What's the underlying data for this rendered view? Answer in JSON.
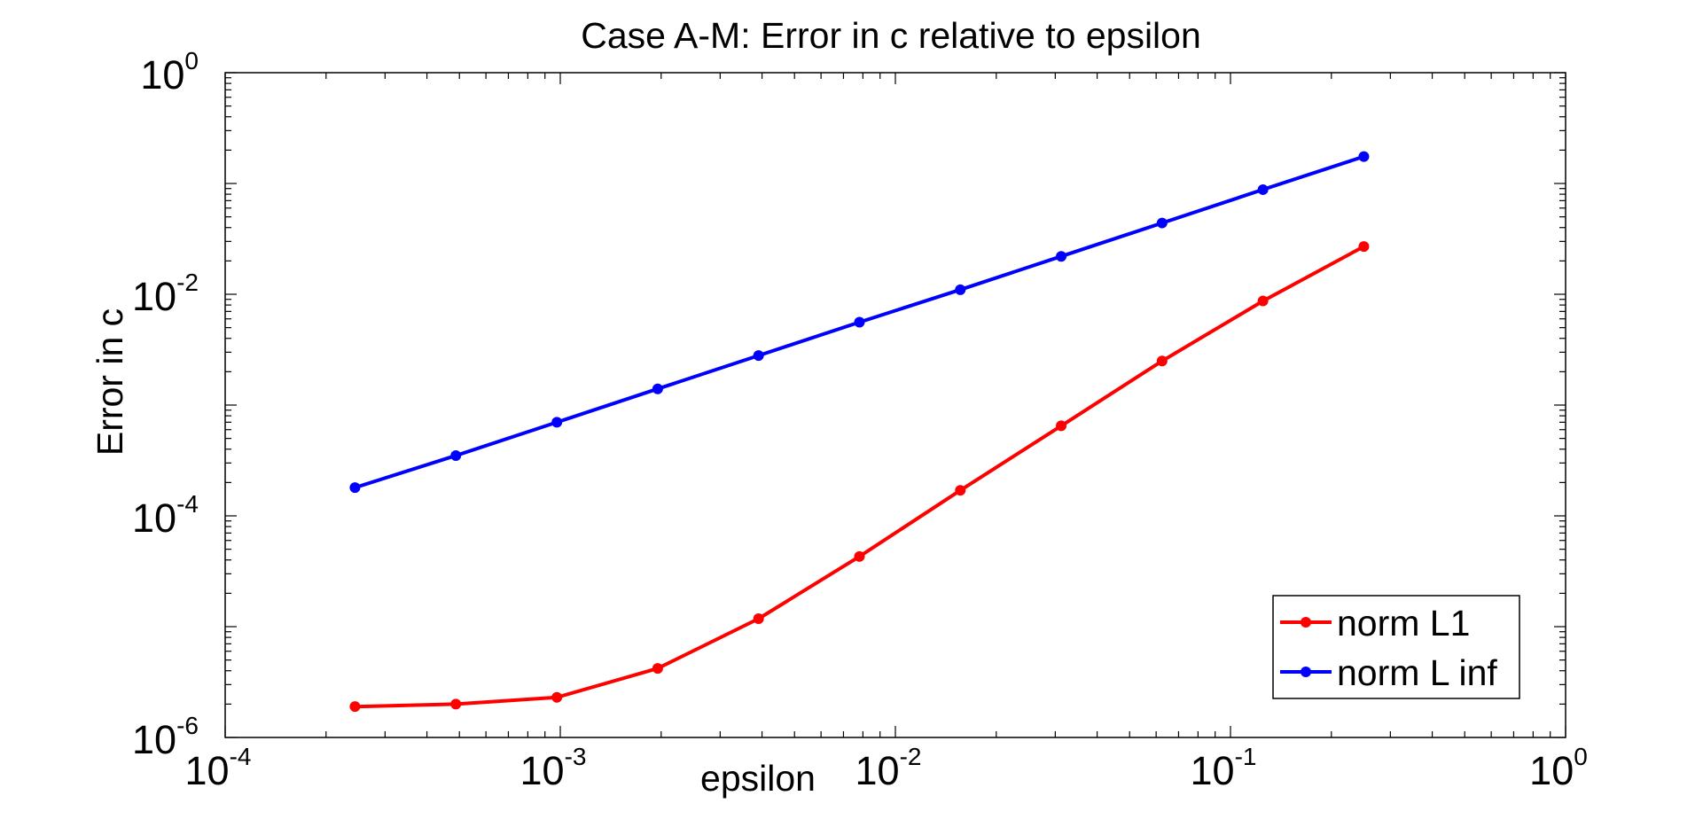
{
  "chart_data": {
    "type": "line",
    "title": "Case A-M: Error in c relative to epsilon",
    "xlabel": "epsilon",
    "ylabel": "Error in c",
    "x_scale": "log",
    "y_scale": "log",
    "xlim": [
      0.0001,
      1
    ],
    "ylim": [
      1e-06,
      1
    ],
    "grid": false,
    "legend_position": "bottom-right",
    "x_ticks": [
      {
        "value": 0.0001,
        "base": "10",
        "exp": "-4"
      },
      {
        "value": 0.001,
        "base": "10",
        "exp": "-3"
      },
      {
        "value": 0.01,
        "base": "10",
        "exp": "-2"
      },
      {
        "value": 0.1,
        "base": "10",
        "exp": "-1"
      },
      {
        "value": 1,
        "base": "10",
        "exp": "0"
      }
    ],
    "y_ticks": [
      {
        "value": 1,
        "base": "10",
        "exp": "0"
      },
      {
        "value": 0.01,
        "base": "10",
        "exp": "-2"
      },
      {
        "value": 0.0001,
        "base": "10",
        "exp": "-4"
      },
      {
        "value": 1e-06,
        "base": "10",
        "exp": "-6"
      }
    ],
    "x": [
      0.000244,
      0.000488,
      0.000977,
      0.001953,
      0.003906,
      0.007813,
      0.015625,
      0.03125,
      0.0625,
      0.125,
      0.25
    ],
    "series": [
      {
        "name": "norm L1",
        "color": "#ff0000",
        "values": [
          1.9e-06,
          2e-06,
          2.3e-06,
          4.2e-06,
          1.18e-05,
          4.3e-05,
          0.00017,
          0.00065,
          0.0025,
          0.0087,
          0.027
        ]
      },
      {
        "name": "norm L inf",
        "color": "#0000ff",
        "values": [
          0.00018,
          0.00035,
          0.0007,
          0.0014,
          0.0028,
          0.0056,
          0.011,
          0.022,
          0.044,
          0.088,
          0.175
        ]
      }
    ]
  }
}
